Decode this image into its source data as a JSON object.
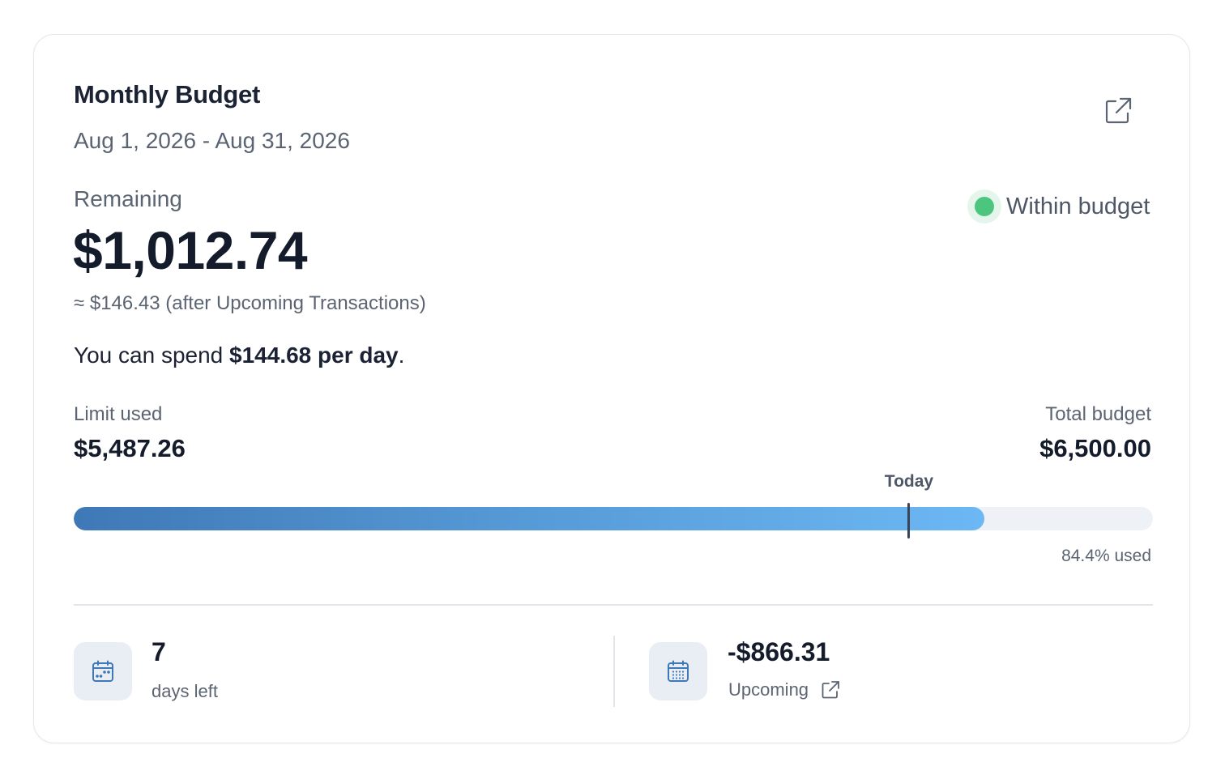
{
  "budget": {
    "title": "Monthly Budget",
    "date_range": "Aug 1, 2026 - Aug 31, 2026",
    "open_icon": "external-link-icon"
  },
  "remaining": {
    "label": "Remaining",
    "amount": "$1,012.74",
    "after_upcoming": "≈ $146.43 (after Upcoming Transactions)"
  },
  "spend": {
    "prefix": "You can spend ",
    "amount": "$144.68 per day",
    "suffix": "."
  },
  "status": {
    "label": "Within budget",
    "color": "#4cc67f"
  },
  "limit": {
    "used_label": "Limit used",
    "used_value": "$5,487.26",
    "total_label": "Total budget",
    "total_value": "$6,500.00"
  },
  "progress": {
    "used_fraction": 0.844,
    "today_fraction": 0.774,
    "today_label": "Today",
    "used_text": "84.4% used",
    "gradient_start": "#3f78b6",
    "gradient_end": "#6cb8f4"
  },
  "stats": {
    "days_left": {
      "value": "7",
      "label": "days left",
      "icon": "calendar-icon"
    },
    "upcoming": {
      "value": "-$866.31",
      "label": "Upcoming",
      "icon": "calendar-grid-icon",
      "link_icon": "external-link-icon"
    }
  }
}
